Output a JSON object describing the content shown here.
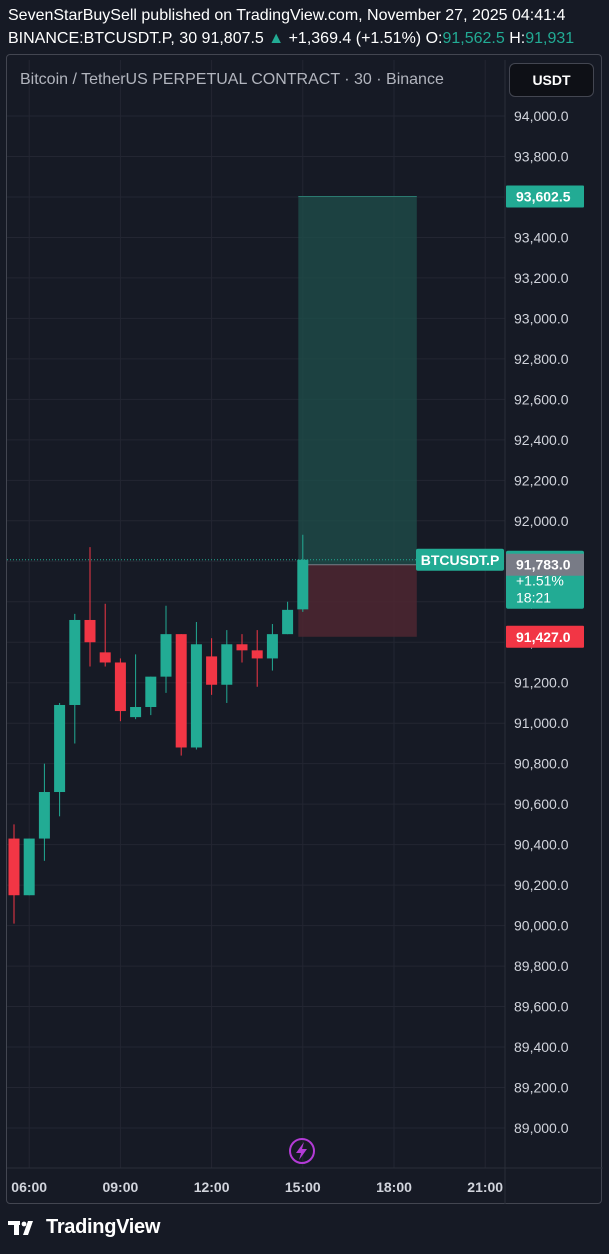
{
  "header": {
    "line1": "SevenStarBuySell published on TradingView.com, November 27, 2025 04:41:4",
    "symbol": "BINANCE:BTCUSDT.P, 30",
    "last_price": "91,807.5",
    "change": "+1,369.4 (+1.51%)",
    "open_label": "O:",
    "open_value": "91,562.5",
    "high_label": "H:",
    "high_value": "91,931",
    "up_arrow_icon": "triangle-up-icon"
  },
  "chart_title": "Bitcoin / TetherUS PERPETUAL CONTRACT · 30 · Binance",
  "currency_button": "USDT",
  "footer": {
    "brand": "TradingView",
    "logo_icon": "tradingview-logo-icon"
  },
  "colors": {
    "background": "#161a25",
    "up": "#22ab94",
    "down": "#f23645",
    "grid": "#232632",
    "axis_text": "#d1d4dc",
    "target_zone": "#1f4f4b",
    "stop_zone": "#4d2731",
    "replay_icon": "#b33bd6"
  },
  "replay_icon": "lightning-icon",
  "chart_data": {
    "type": "candlestick",
    "title": "Bitcoin / TetherUS PERPETUAL CONTRACT · 30 · Binance",
    "ylim": [
      88800,
      94100
    ],
    "y_ticks": [
      94000,
      93800,
      93600,
      93400,
      93200,
      93000,
      92800,
      92600,
      92400,
      92200,
      92000,
      91800,
      91600,
      91400,
      91200,
      91000,
      90800,
      90600,
      90400,
      90200,
      90000,
      89800,
      89600,
      89400,
      89200,
      89000
    ],
    "y_tick_labels": [
      "94,000.0",
      "93,800.0",
      "93,600.0",
      "93,400.0",
      "93,200.0",
      "93,000.0",
      "92,800.0",
      "92,600.0",
      "92,400.0",
      "92,200.0",
      "92,000.0",
      "91,800.0",
      "91,600.0",
      "91,400.0",
      "91,200.0",
      "91,000.0",
      "90,800.0",
      "90,600.0",
      "90,400.0",
      "90,200.0",
      "90,000.0",
      "89,800.0",
      "89,600.0",
      "89,400.0",
      "89,200.0",
      "89,000.0"
    ],
    "x_ticks": [
      {
        "label": "06:00",
        "index": 1
      },
      {
        "label": "09:00",
        "index": 7
      },
      {
        "label": "12:00",
        "index": 13
      },
      {
        "label": "15:00",
        "index": 19
      },
      {
        "label": "18:00",
        "index": 25
      },
      {
        "label": "21:00",
        "index": 31
      }
    ],
    "x_range": [
      0,
      33.3
    ],
    "candles": [
      {
        "o": 90430,
        "h": 90500,
        "l": 90010,
        "c": 90150
      },
      {
        "o": 90150,
        "h": 90430,
        "l": 90150,
        "c": 90430
      },
      {
        "o": 90430,
        "h": 90800,
        "l": 90320,
        "c": 90660
      },
      {
        "o": 90660,
        "h": 91100,
        "l": 90540,
        "c": 91090
      },
      {
        "o": 91090,
        "h": 91540,
        "l": 90900,
        "c": 91510
      },
      {
        "o": 91510,
        "h": 91870,
        "l": 91280,
        "c": 91400
      },
      {
        "o": 91350,
        "h": 91590,
        "l": 91280,
        "c": 91300
      },
      {
        "o": 91300,
        "h": 91320,
        "l": 91010,
        "c": 91060
      },
      {
        "o": 91030,
        "h": 91340,
        "l": 91020,
        "c": 91080
      },
      {
        "o": 91080,
        "h": 91230,
        "l": 91040,
        "c": 91230
      },
      {
        "o": 91230,
        "h": 91580,
        "l": 91150,
        "c": 91440
      },
      {
        "o": 91440,
        "h": 91440,
        "l": 90840,
        "c": 90880
      },
      {
        "o": 90880,
        "h": 91500,
        "l": 90870,
        "c": 91390
      },
      {
        "o": 91330,
        "h": 91420,
        "l": 91140,
        "c": 91190
      },
      {
        "o": 91190,
        "h": 91460,
        "l": 91100,
        "c": 91390
      },
      {
        "o": 91390,
        "h": 91440,
        "l": 91300,
        "c": 91360
      },
      {
        "o": 91360,
        "h": 91460,
        "l": 91180,
        "c": 91320
      },
      {
        "o": 91320,
        "h": 91490,
        "l": 91260,
        "c": 91440
      },
      {
        "o": 91440,
        "h": 91600,
        "l": 91440,
        "c": 91560
      },
      {
        "o": 91562.5,
        "h": 91931,
        "l": 91550,
        "c": 91807.5
      }
    ],
    "position": {
      "start_index": 19.1,
      "end_index": 26.5,
      "entry": 91783.0,
      "target": 93602.5,
      "stop": 91427.0,
      "target_label": "93,602.5",
      "stop_label": "91,427.0"
    },
    "last_price_line": 91807.5,
    "price_badge": {
      "symbol": "BTCUSDT.P",
      "price": "91,783.0",
      "change_pct": "+1.51%",
      "countdown": "18:21"
    }
  }
}
